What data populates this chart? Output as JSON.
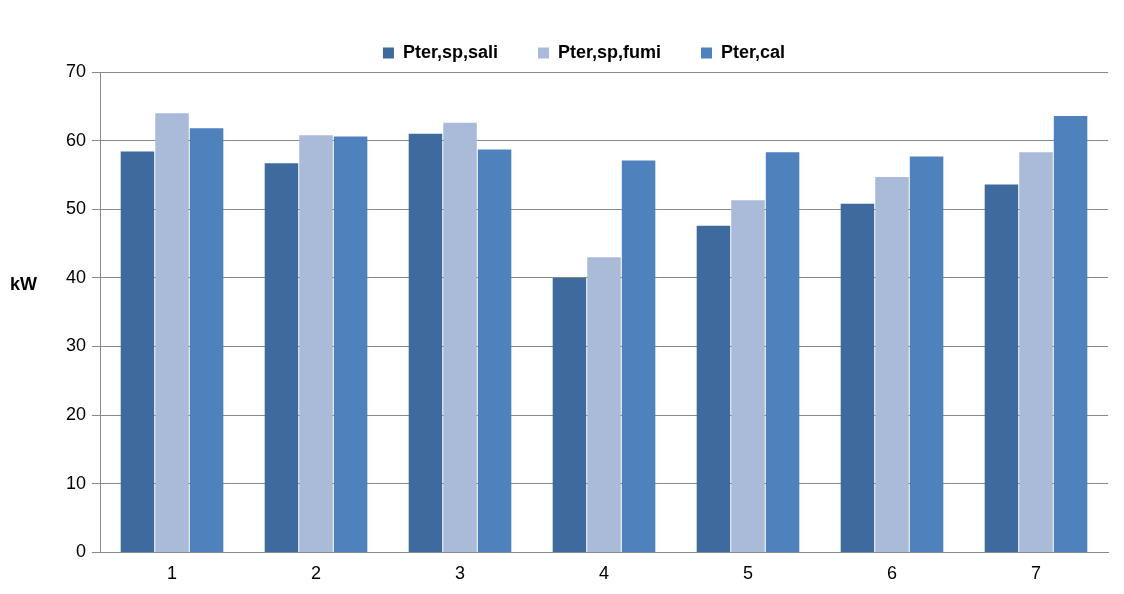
{
  "chart_data": {
    "type": "bar",
    "ylabel": "kW",
    "categories": [
      "1",
      "2",
      "3",
      "4",
      "5",
      "6",
      "7"
    ],
    "series": [
      {
        "name": "Pter,sp,sali",
        "color": "#3f6a9d",
        "values": [
          58.4,
          56.7,
          61.0,
          40.0,
          47.6,
          50.8,
          53.6
        ]
      },
      {
        "name": "Pter,sp,fumi",
        "color": "#aabad9",
        "values": [
          64.0,
          60.8,
          62.6,
          43.0,
          51.3,
          54.7,
          58.3
        ]
      },
      {
        "name": "Pter,cal",
        "color": "#4f81bd",
        "values": [
          61.8,
          60.6,
          58.7,
          57.1,
          58.3,
          57.7,
          63.6
        ]
      }
    ],
    "ylim": [
      0,
      70
    ],
    "yticks": [
      0,
      10,
      20,
      30,
      40,
      50,
      60,
      70
    ],
    "grid": "y",
    "legend": "top"
  }
}
